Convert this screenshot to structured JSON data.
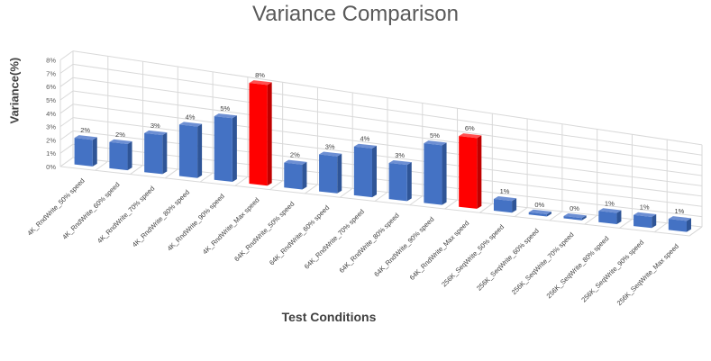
{
  "chart_data": {
    "type": "bar",
    "title": "Variance Comparison",
    "xlabel": "Test Conditions",
    "ylabel": "Variance(%)",
    "ylim": [
      0,
      8
    ],
    "yticks": [
      "0%",
      "1%",
      "2%",
      "3%",
      "4%",
      "5%",
      "6%",
      "7%",
      "8%"
    ],
    "grid": true,
    "categories": [
      "4K_RndWrite_50% speed",
      "4K_RndWrite_60% speed",
      "4K_RndWrite_70% speed",
      "4K_RndWrite_80% speed",
      "4K_RndWrite_90% speed",
      "4K_RndWrite_Max speed",
      "64K_RndWrite_50% speed",
      "64K_RndWrite_60% speed",
      "64K_RndWrite_70% speed",
      "64K_RndWrite_80% speed",
      "64K_RndWrite_90% speed",
      "64K_RndWrite_Max speed",
      "256K_SeqWrite_50% speed",
      "256K_SeqWrite_60% speed",
      "256K_SeqWrite_70% speed",
      "256K_SeqWrite_80% speed",
      "256K_SeqWrite_90% speed",
      "256K_SeqWrite_Max speed"
    ],
    "values": [
      2,
      2,
      3,
      4,
      5,
      8,
      2,
      3,
      4,
      3,
      5,
      6,
      1,
      0,
      0,
      1,
      1,
      1
    ],
    "data_labels": [
      "2%",
      "2%",
      "3%",
      "4%",
      "5%",
      "8%",
      "2%",
      "3%",
      "4%",
      "3%",
      "5%",
      "6%",
      "1%",
      "0%",
      "0%",
      "1%",
      "1%",
      "1%"
    ],
    "highlight": [
      false,
      false,
      false,
      false,
      false,
      true,
      false,
      false,
      false,
      false,
      false,
      true,
      false,
      false,
      false,
      false,
      false,
      false
    ],
    "colors": {
      "bar": "#4472c4",
      "bar_side": "#2f5597",
      "bar_top": "#6d8fd3",
      "highlight": "#ff0000",
      "highlight_side": "#c00000",
      "highlight_top": "#ff5050"
    }
  }
}
